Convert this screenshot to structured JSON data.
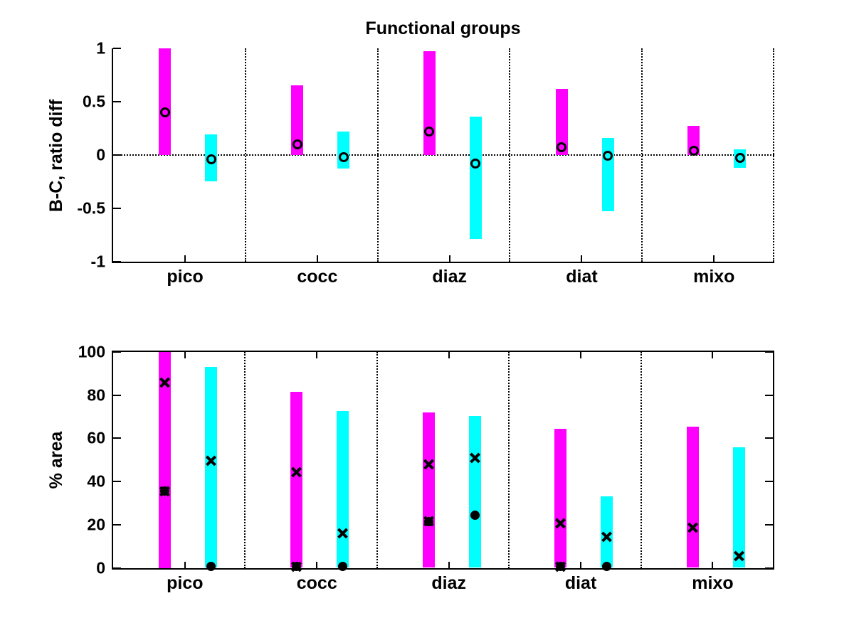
{
  "figure": {
    "background": "#ffffff",
    "title": "Functional groups"
  },
  "colors": {
    "series_b": "#ff00ff",
    "series_c": "#00ffff",
    "axis": "#000000"
  },
  "chart_data": [
    {
      "type": "bar",
      "title": "Functional groups",
      "ylabel": "B-C, ratio diff",
      "categories": [
        "pico",
        "cocc",
        "diaz",
        "diat",
        "mixo"
      ],
      "ylim": [
        -1,
        1
      ],
      "yticks": [
        1,
        0.5,
        0,
        -0.5,
        -1
      ],
      "ytick_labels": [
        "1",
        "0.5",
        "0",
        "-0.5",
        "-1"
      ],
      "grid": {
        "vertical_category_separators": true,
        "dotted_zero_line": true,
        "box": false
      },
      "legend": null,
      "series": [
        {
          "name": "magenta",
          "color": "#ff00ff",
          "bars": [
            [
              0,
              1.0
            ],
            [
              0,
              0.65
            ],
            [
              0,
              0.97
            ],
            [
              0,
              0.62
            ],
            [
              0,
              0.27
            ]
          ],
          "circles": [
            0.4,
            0.1,
            0.22,
            0.07,
            0.04
          ]
        },
        {
          "name": "cyan",
          "color": "#00ffff",
          "bars": [
            [
              -0.25,
              0.19
            ],
            [
              -0.13,
              0.22
            ],
            [
              -0.79,
              0.36
            ],
            [
              -0.53,
              0.16
            ],
            [
              -0.12,
              0.05
            ]
          ],
          "circles": [
            -0.04,
            -0.02,
            -0.08,
            -0.01,
            -0.03
          ]
        }
      ]
    },
    {
      "type": "bar",
      "title": "",
      "ylabel": "% area",
      "categories": [
        "pico",
        "cocc",
        "diaz",
        "diat",
        "mixo"
      ],
      "ylim": [
        0,
        100
      ],
      "yticks": [
        100,
        80,
        60,
        40,
        20,
        0
      ],
      "ytick_labels": [
        "100",
        "80",
        "60",
        "40",
        "20",
        "0"
      ],
      "grid": {
        "vertical_category_separators": true,
        "dotted_zero_line": false,
        "box": true
      },
      "legend": null,
      "series": [
        {
          "name": "magenta",
          "color": "#ff00ff",
          "bars": [
            [
              0,
              100
            ],
            [
              0,
              81.5
            ],
            [
              0,
              72
            ],
            [
              0,
              64.5
            ],
            [
              0,
              65.5
            ]
          ],
          "x_marks": [
            [
              86,
              35.5
            ],
            [
              44.5,
              0.5
            ],
            [
              48,
              21.5
            ],
            [
              20.5,
              0.5
            ],
            [
              18.5
            ]
          ],
          "dots": [
            [
              35.5
            ],
            [
              0.5
            ],
            [
              21.5
            ],
            [
              0.5
            ],
            []
          ]
        },
        {
          "name": "cyan",
          "color": "#00ffff",
          "bars": [
            [
              0,
              93
            ],
            [
              0,
              72.5
            ],
            [
              0,
              70.5
            ],
            [
              0,
              33
            ],
            [
              0,
              56
            ]
          ],
          "x_marks": [
            [
              49.5
            ],
            [
              16
            ],
            [
              51
            ],
            [
              14.5
            ],
            [
              5.5
            ]
          ],
          "dots": [
            [
              0.5
            ],
            [
              0.5
            ],
            [
              24.5
            ],
            [
              0.5
            ],
            []
          ]
        }
      ]
    }
  ]
}
